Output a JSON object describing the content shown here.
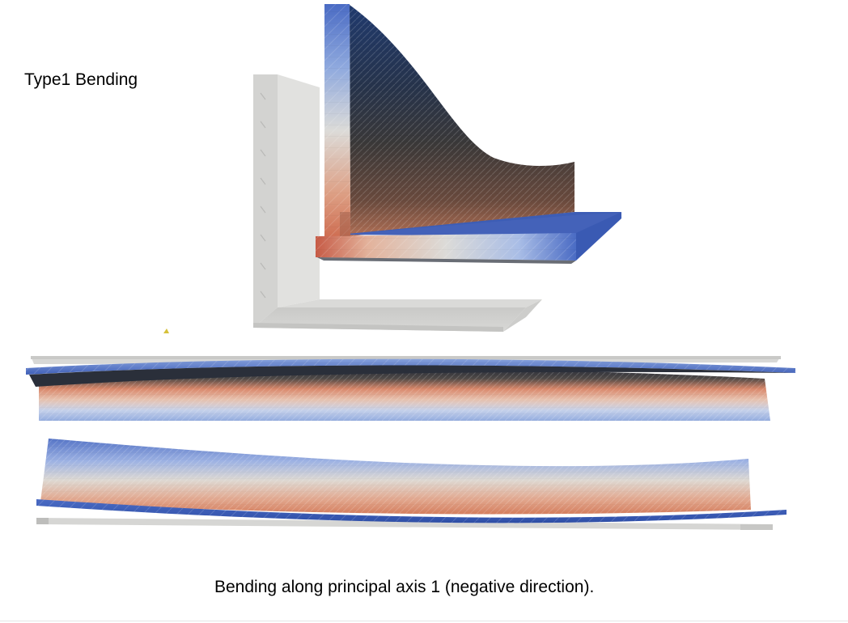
{
  "figure": {
    "title": "Type1 Bending",
    "caption": "Bending along principal axis 1 (negative direction)."
  },
  "colors": {
    "undeformed": "#d6d6d4",
    "undeformed_edge": "#bdbdbb",
    "blue": "#4a6bc4",
    "light_blue": "#a9bde6",
    "neutral": "#dcdbd8",
    "peach": "#e3b29b",
    "orange": "#d68363",
    "red": "#b3202f",
    "dark_face": "#2a3140"
  }
}
